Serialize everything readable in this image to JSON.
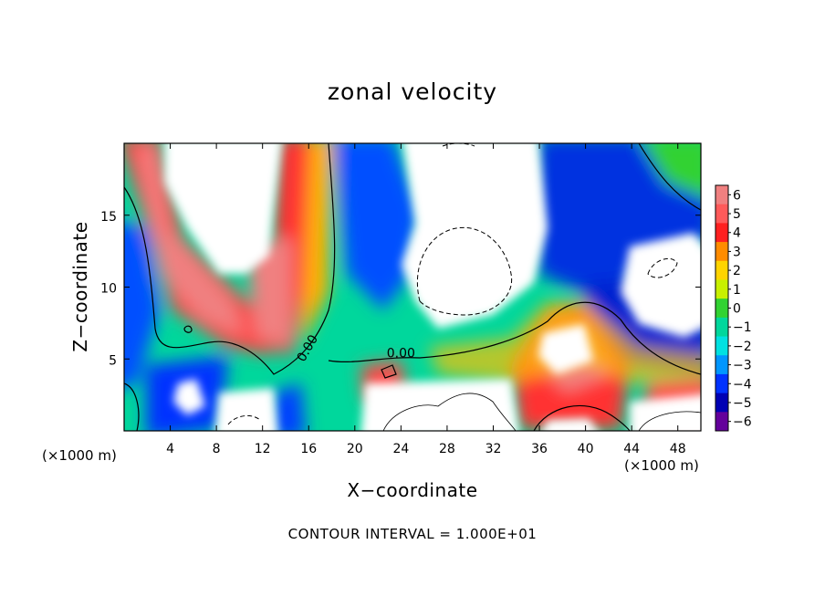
{
  "chart_data": {
    "type": "heatmap",
    "title": "zonal velocity",
    "xlabel": "X−coordinate",
    "ylabel": "Z−coordinate",
    "x_scale_label": "(×1000 m)",
    "x_scale_label_right": "(×1000 m)",
    "xlim": [
      0,
      50
    ],
    "ylim": [
      0,
      20
    ],
    "x_ticks": [
      4,
      8,
      12,
      16,
      20,
      24,
      28,
      32,
      36,
      40,
      44,
      48
    ],
    "x_tick_labels": [
      "4",
      "8",
      "12",
      "16",
      "20",
      "24",
      "28",
      "32",
      "36",
      "40",
      "44",
      "48"
    ],
    "y_ticks": [
      5,
      10,
      15
    ],
    "y_tick_labels": [
      "5",
      "10",
      "15"
    ],
    "colorbar": {
      "levels": [
        6,
        5,
        4,
        3,
        2,
        1,
        0,
        -1,
        -2,
        -3,
        -4,
        -5,
        -6
      ],
      "labels": [
        "6",
        "5",
        "4",
        "3",
        "2",
        "1",
        "0",
        "−1",
        "−2",
        "−3",
        "−4",
        "−5",
        "−6"
      ],
      "colors": [
        "#f08080",
        "#ff5a5a",
        "#ff2020",
        "#ff8c00",
        "#ffd400",
        "#c8f000",
        "#32d232",
        "#00d79c",
        "#00e1e1",
        "#0096ff",
        "#0032ff",
        "#0000b4",
        "#64009b"
      ]
    },
    "contour_labels": [
      "0.00",
      "0.00"
    ],
    "contour_note": "CONTOUR INTERVAL = 1.000E+01"
  }
}
